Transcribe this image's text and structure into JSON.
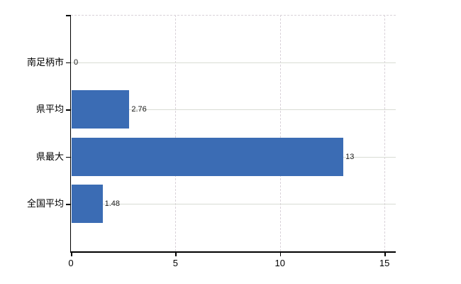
{
  "chart_data": {
    "type": "bar",
    "orientation": "horizontal",
    "title": "",
    "xlabel": "",
    "ylabel": "",
    "categories": [
      "南足柄市",
      "県平均",
      "県最大",
      "全国平均"
    ],
    "values": [
      0,
      2.76,
      13,
      1.48
    ],
    "value_labels": [
      "0",
      "2.76",
      "13",
      "1.48"
    ],
    "x_ticks": [
      0,
      5,
      10,
      15
    ],
    "x_tick_labels": [
      "0",
      "5",
      "10",
      "15"
    ],
    "xlim": [
      0,
      15.54
    ],
    "grid": {
      "horizontal": "solid",
      "vertical": "dashed",
      "top_border": "dashed"
    },
    "legend": "none",
    "colors": {
      "bar": "#3b6cb4",
      "horizontal_gridline": "#d9dcd4",
      "vertical_gridline": "#d9d2d9",
      "axis": "#000000",
      "text": "#000000",
      "value_text": "#1a1a1a",
      "background": "#ffffff"
    }
  }
}
